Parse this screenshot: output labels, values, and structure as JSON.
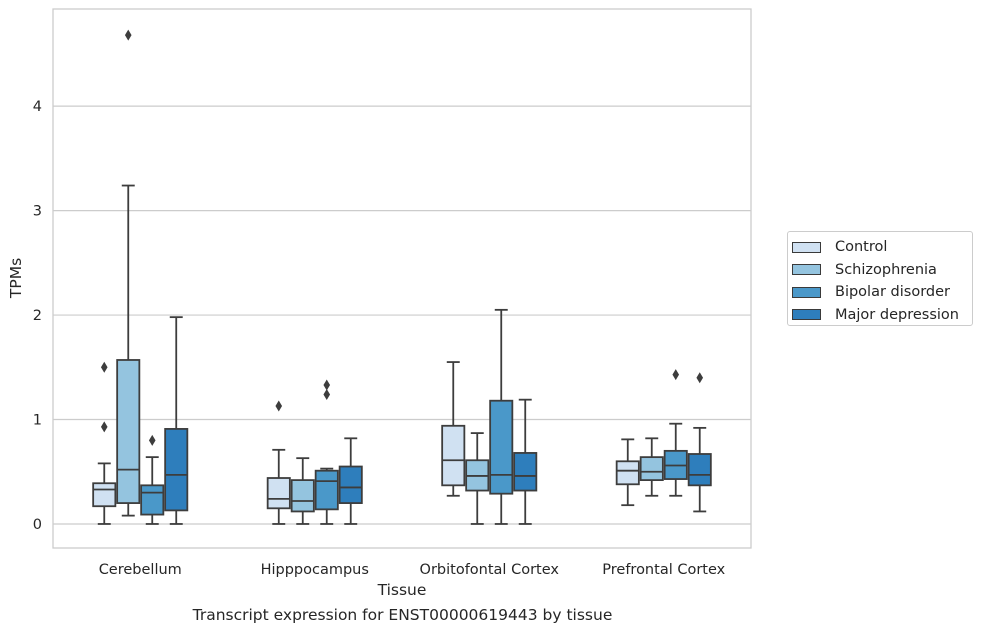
{
  "caption": "Transcript expression for ENST00000619443 by tissue",
  "chart_data": {
    "type": "box",
    "xlabel": "Tissue",
    "ylabel": "TPMs",
    "ylim": [
      -0.23,
      4.93
    ],
    "yticks": [
      0,
      1,
      2,
      3,
      4
    ],
    "grid": true,
    "legend_position": "right",
    "categories": [
      "Cerebellum",
      "Hipppocampus",
      "Orbitofontal Cortex",
      "Prefrontal Cortex"
    ],
    "series": [
      {
        "name": "Control",
        "color": "#d0e1f2",
        "boxes": [
          {
            "whislo": 0.0,
            "q1": 0.17,
            "med": 0.33,
            "q3": 0.39,
            "whishi": 0.58,
            "fliers": [
              0.93,
              1.5
            ]
          },
          {
            "whislo": 0.0,
            "q1": 0.15,
            "med": 0.24,
            "q3": 0.44,
            "whishi": 0.71,
            "fliers": [
              1.13
            ]
          },
          {
            "whislo": 0.27,
            "q1": 0.37,
            "med": 0.61,
            "q3": 0.94,
            "whishi": 1.55,
            "fliers": []
          },
          {
            "whislo": 0.18,
            "q1": 0.38,
            "med": 0.51,
            "q3": 0.6,
            "whishi": 0.81,
            "fliers": []
          }
        ]
      },
      {
        "name": "Schizophrenia",
        "color": "#94c4df",
        "boxes": [
          {
            "whislo": 0.08,
            "q1": 0.2,
            "med": 0.52,
            "q3": 1.57,
            "whishi": 3.24,
            "fliers": [
              4.68
            ]
          },
          {
            "whislo": 0.0,
            "q1": 0.12,
            "med": 0.22,
            "q3": 0.42,
            "whishi": 0.63,
            "fliers": []
          },
          {
            "whislo": 0.0,
            "q1": 0.32,
            "med": 0.46,
            "q3": 0.61,
            "whishi": 0.87,
            "fliers": []
          },
          {
            "whislo": 0.27,
            "q1": 0.42,
            "med": 0.5,
            "q3": 0.64,
            "whishi": 0.82,
            "fliers": []
          }
        ]
      },
      {
        "name": "Bipolar disorder",
        "color": "#4a98c9",
        "boxes": [
          {
            "whislo": 0.0,
            "q1": 0.09,
            "med": 0.3,
            "q3": 0.37,
            "whishi": 0.64,
            "fliers": [
              0.8
            ]
          },
          {
            "whislo": 0.0,
            "q1": 0.14,
            "med": 0.41,
            "q3": 0.51,
            "whishi": 0.53,
            "fliers": [
              1.24,
              1.33
            ]
          },
          {
            "whislo": 0.0,
            "q1": 0.29,
            "med": 0.47,
            "q3": 1.18,
            "whishi": 2.05,
            "fliers": []
          },
          {
            "whislo": 0.27,
            "q1": 0.43,
            "med": 0.56,
            "q3": 0.7,
            "whishi": 0.96,
            "fliers": [
              1.43
            ]
          }
        ]
      },
      {
        "name": "Major depression",
        "color": "#2e7ebc",
        "boxes": [
          {
            "whislo": 0.0,
            "q1": 0.13,
            "med": 0.47,
            "q3": 0.91,
            "whishi": 1.98,
            "fliers": []
          },
          {
            "whislo": 0.0,
            "q1": 0.2,
            "med": 0.35,
            "q3": 0.55,
            "whishi": 0.82,
            "fliers": []
          },
          {
            "whislo": 0.0,
            "q1": 0.32,
            "med": 0.46,
            "q3": 0.68,
            "whishi": 1.19,
            "fliers": []
          },
          {
            "whislo": 0.12,
            "q1": 0.37,
            "med": 0.47,
            "q3": 0.67,
            "whishi": 0.92,
            "fliers": [
              1.4
            ]
          }
        ]
      }
    ]
  }
}
